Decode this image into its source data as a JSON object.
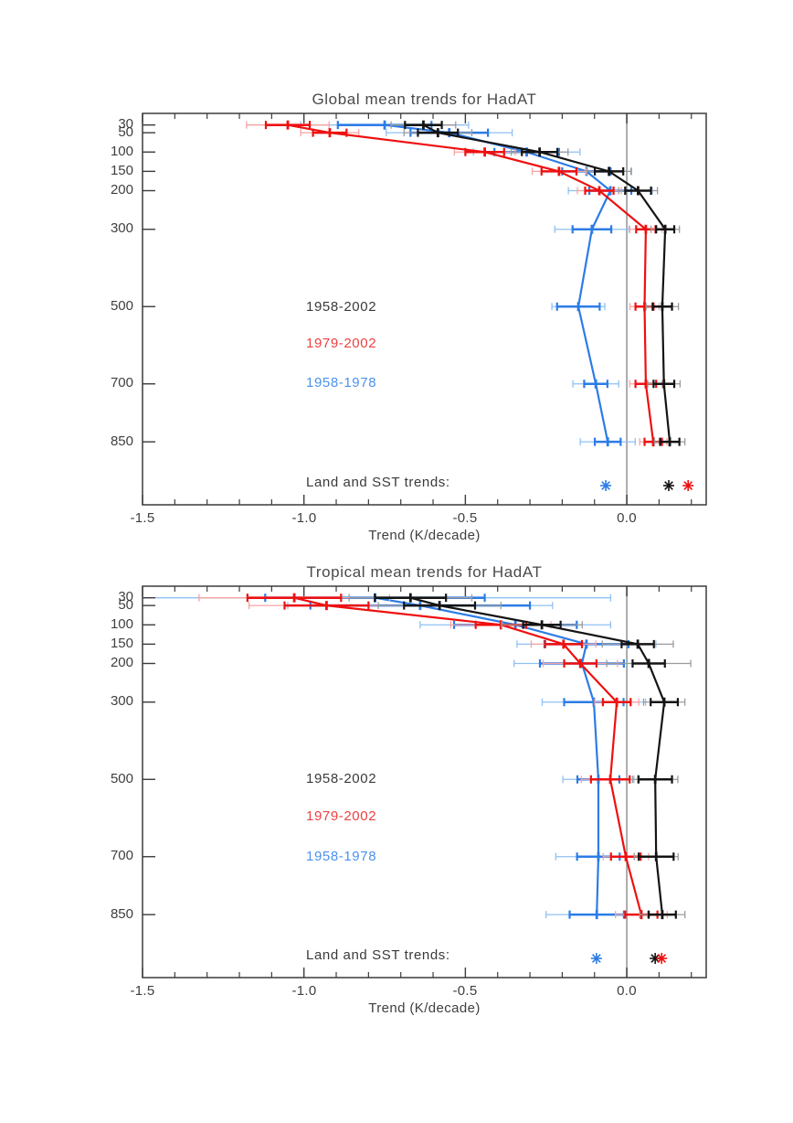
{
  "colors": {
    "line": {
      "black": "#141414",
      "red": "#ee1010",
      "blue": "#2c7ce6"
    },
    "light": {
      "black": "#9b9b9b",
      "red": "#f7a3a3",
      "blue": "#8fc1f4"
    },
    "text": {
      "black": "#3a3a3a",
      "red": "#ef4040",
      "blue": "#4b92ee"
    },
    "axis": "#3b3b3b",
    "zero_line": "#999999",
    "background": "#ffffff"
  },
  "chart_data": [
    {
      "type": "line",
      "title": "Global mean trends for HadAT",
      "xlabel": "Trend (K/decade)",
      "xlim": [
        -1.5,
        0.246
      ],
      "x_tick_labels": [
        "-1.5",
        "-1.0",
        "-0.5",
        "0.0"
      ],
      "x_ticks_major": [
        -1.5,
        -1.0,
        -0.5,
        0.0
      ],
      "x_minor_step": 0.1,
      "y_axis": "pressure_hPa",
      "ylim_hpa": [
        0,
        1013
      ],
      "y_tick_labels": [
        "30",
        "50",
        "100",
        "150",
        "200",
        "300",
        "500",
        "700",
        "850"
      ],
      "pressures_hpa": [
        30,
        50,
        100,
        150,
        200,
        300,
        500,
        700,
        850
      ],
      "zero_reference_line": 0.0,
      "series": [
        {
          "name": "1958-2002",
          "color": "black",
          "values": [
            -0.63,
            -0.585,
            -0.27,
            -0.055,
            0.035,
            0.119,
            0.11,
            0.115,
            0.133
          ],
          "err_inner": [
            0.057,
            0.062,
            0.055,
            0.044,
            0.04,
            0.028,
            0.03,
            0.032,
            0.03
          ],
          "err_outer": [
            0.1,
            0.105,
            0.088,
            0.068,
            0.06,
            0.044,
            0.05,
            0.05,
            0.047
          ]
        },
        {
          "name": "1979-2002",
          "color": "red",
          "values": [
            -1.05,
            -0.92,
            -0.44,
            -0.21,
            -0.085,
            0.059,
            0.055,
            0.059,
            0.082
          ],
          "err_inner": [
            0.068,
            0.052,
            0.06,
            0.054,
            0.044,
            0.03,
            0.028,
            0.032,
            0.027
          ],
          "err_outer": [
            0.128,
            0.09,
            0.094,
            0.083,
            0.068,
            0.05,
            0.045,
            0.05,
            0.042
          ]
        },
        {
          "name": "1958-1978",
          "color": "blue",
          "values": [
            -0.75,
            -0.55,
            -0.31,
            -0.125,
            -0.051,
            -0.108,
            -0.15,
            -0.096,
            -0.059
          ],
          "err_inner": [
            0.145,
            0.12,
            0.1,
            0.075,
            0.065,
            0.06,
            0.066,
            0.036,
            0.04
          ],
          "err_outer": [
            0.26,
            0.195,
            0.165,
            0.14,
            0.13,
            0.115,
            0.082,
            0.071,
            0.085
          ]
        }
      ],
      "land_sst": {
        "label": "Land and SST trends:",
        "markers": [
          {
            "series": "1958-1978",
            "color": "blue",
            "value": -0.065
          },
          {
            "series": "1958-2002",
            "color": "black",
            "value": 0.13
          },
          {
            "series": "1979-2002",
            "color": "red",
            "value": 0.19
          }
        ]
      }
    },
    {
      "type": "line",
      "title": "Tropical mean trends for HadAT",
      "xlabel": "Trend (K/decade)",
      "xlim": [
        -1.5,
        0.246
      ],
      "x_tick_labels": [
        "-1.5",
        "-1.0",
        "-0.5",
        "0.0"
      ],
      "x_ticks_major": [
        -1.5,
        -1.0,
        -0.5,
        0.0
      ],
      "x_minor_step": 0.1,
      "y_axis": "pressure_hPa",
      "ylim_hpa": [
        0,
        1013
      ],
      "y_tick_labels": [
        "30",
        "50",
        "100",
        "150",
        "200",
        "300",
        "500",
        "700",
        "850"
      ],
      "pressures_hpa": [
        30,
        50,
        100,
        150,
        200,
        300,
        500,
        700,
        850
      ],
      "zero_reference_line": 0.0,
      "series": [
        {
          "name": "1958-2002",
          "color": "black",
          "values": [
            -0.67,
            -0.58,
            -0.263,
            0.034,
            0.068,
            0.116,
            0.088,
            0.091,
            0.11
          ],
          "err_inner": [
            0.11,
            0.11,
            0.058,
            0.05,
            0.05,
            0.042,
            0.052,
            0.054,
            0.042
          ],
          "err_outer": [
            0.19,
            0.19,
            0.125,
            0.11,
            0.13,
            0.064,
            0.07,
            0.068,
            0.07
          ]
        },
        {
          "name": "1979-2002",
          "color": "red",
          "values": [
            -1.03,
            -0.93,
            -0.39,
            -0.196,
            -0.144,
            -0.031,
            -0.051,
            -0.003,
            0.045
          ],
          "err_inner": [
            0.145,
            0.13,
            0.078,
            0.057,
            0.05,
            0.043,
            0.06,
            0.046,
            0.05
          ],
          "err_outer": [
            0.295,
            0.24,
            0.155,
            0.1,
            0.115,
            0.068,
            0.09,
            0.07,
            0.08
          ]
        },
        {
          "name": "1958-1978",
          "color": "blue",
          "values": [
            -0.78,
            -0.64,
            -0.345,
            -0.125,
            -0.139,
            -0.102,
            -0.088,
            -0.088,
            -0.093
          ],
          "err_inner": [
            0.34,
            0.34,
            0.19,
            0.13,
            0.13,
            0.092,
            0.065,
            0.066,
            0.084
          ],
          "err_outer": [
            0.73,
            0.41,
            0.295,
            0.215,
            0.21,
            0.16,
            0.11,
            0.132,
            0.157
          ]
        }
      ],
      "land_sst": {
        "label": "Land and SST trends:",
        "markers": [
          {
            "series": "1958-1978",
            "color": "blue",
            "value": -0.094
          },
          {
            "series": "1958-2002",
            "color": "black",
            "value": 0.088
          },
          {
            "series": "1979-2002",
            "color": "red",
            "value": 0.108
          }
        ]
      }
    }
  ]
}
